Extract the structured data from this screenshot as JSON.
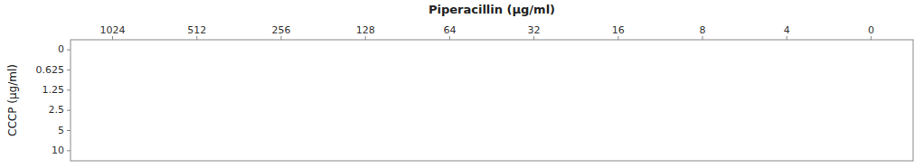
{
  "chart_data": {
    "type": "heatmap",
    "title": "Piperacillin (μg/ml)",
    "y_label": "CCCP (μg/ml)",
    "categories": [
      "1024",
      "512",
      "256",
      "128",
      "64",
      "32",
      "16",
      "8",
      "4",
      "0"
    ],
    "y_categories": [
      "0",
      "0.625",
      "1.25",
      "2.5",
      "5",
      "10"
    ],
    "grid": false
  }
}
